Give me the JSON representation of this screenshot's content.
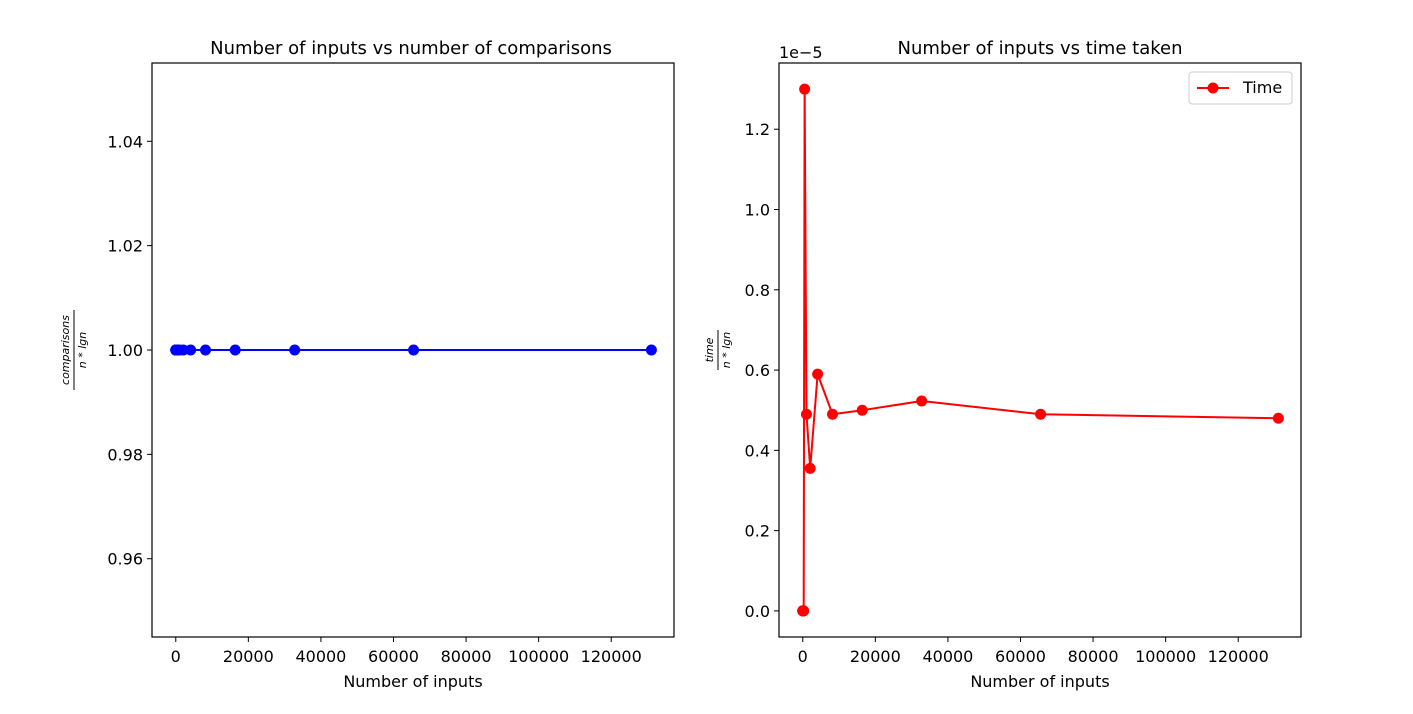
{
  "chart_data": [
    {
      "type": "line",
      "title": "Number of inputs vs number of comparisons",
      "xlabel": "Number of inputs",
      "ylabel": {
        "numerator": "comparisons",
        "denominator": "n * lgn"
      },
      "xlim": [
        -6550,
        137300
      ],
      "ylim": [
        0.945,
        1.055
      ],
      "xticks": [
        0,
        20000,
        40000,
        60000,
        80000,
        100000,
        120000
      ],
      "xtick_labels": [
        "0",
        "20000",
        "40000",
        "60000",
        "80000",
        "100000",
        "120000"
      ],
      "yticks": [
        0.96,
        0.98,
        1.0,
        1.02,
        1.04
      ],
      "ytick_labels": [
        "0.96",
        "0.98",
        "1.00",
        "1.02",
        "1.04"
      ],
      "grid": false,
      "series": [
        {
          "color": "#0000ff",
          "marker": "circle",
          "x": [
            2,
            4,
            8,
            16,
            32,
            64,
            128,
            256,
            512,
            1024,
            2048,
            4096,
            8192,
            16384,
            32768,
            65536,
            131072
          ],
          "y": [
            1,
            1,
            1,
            1,
            1,
            1,
            1,
            1,
            1,
            1,
            1,
            1,
            1,
            1,
            1,
            1,
            1
          ]
        }
      ]
    },
    {
      "type": "line",
      "title": "Number of inputs vs time taken",
      "xlabel": "Number of inputs",
      "ylabel": {
        "numerator": "time",
        "denominator": "n * lgn"
      },
      "offset_text": "1e−5",
      "xlim": [
        -6550,
        137300
      ],
      "ylim": [
        -0.065,
        1.365
      ],
      "xticks": [
        0,
        20000,
        40000,
        60000,
        80000,
        100000,
        120000
      ],
      "xtick_labels": [
        "0",
        "20000",
        "40000",
        "60000",
        "80000",
        "100000",
        "120000"
      ],
      "yticks": [
        0.0,
        0.2,
        0.4,
        0.6,
        0.8,
        1.0,
        1.2
      ],
      "ytick_labels": [
        "0.0",
        "0.2",
        "0.4",
        "0.6",
        "0.8",
        "1.0",
        "1.2"
      ],
      "grid": false,
      "legend": {
        "placement": "top-right",
        "entries": [
          "Time"
        ]
      },
      "series": [
        {
          "name": "Time",
          "color": "#ff0000",
          "marker": "circle",
          "x": [
            2,
            4,
            8,
            16,
            32,
            64,
            128,
            256,
            512,
            1024,
            2048,
            4096,
            8192,
            16384,
            32768,
            65536,
            131072
          ],
          "y": [
            0.0,
            0.0,
            0.0,
            0.0,
            0.0,
            0.0,
            0.0,
            0.0,
            1.3,
            0.49,
            0.355,
            0.59,
            0.49,
            0.5,
            0.523,
            0.49,
            0.48
          ]
        }
      ]
    }
  ]
}
